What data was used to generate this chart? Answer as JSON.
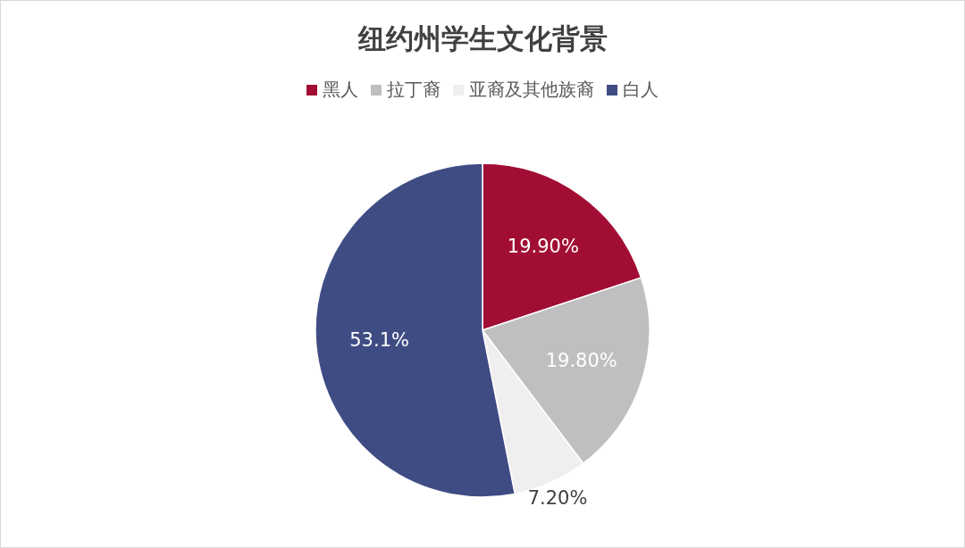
{
  "chart_data": {
    "type": "pie",
    "title": "纽约州学生文化背景",
    "categories": [
      "黑人",
      "拉丁裔",
      "亚裔及其他族裔",
      "白人"
    ],
    "values": [
      19.9,
      19.8,
      7.2,
      53.1
    ],
    "value_labels": [
      "19.90%",
      "19.80%",
      "7.20%",
      "53.1%"
    ],
    "colors": [
      "#a20e33",
      "#bfbfbf",
      "#efefef",
      "#3f4c84"
    ],
    "legend": "top"
  }
}
